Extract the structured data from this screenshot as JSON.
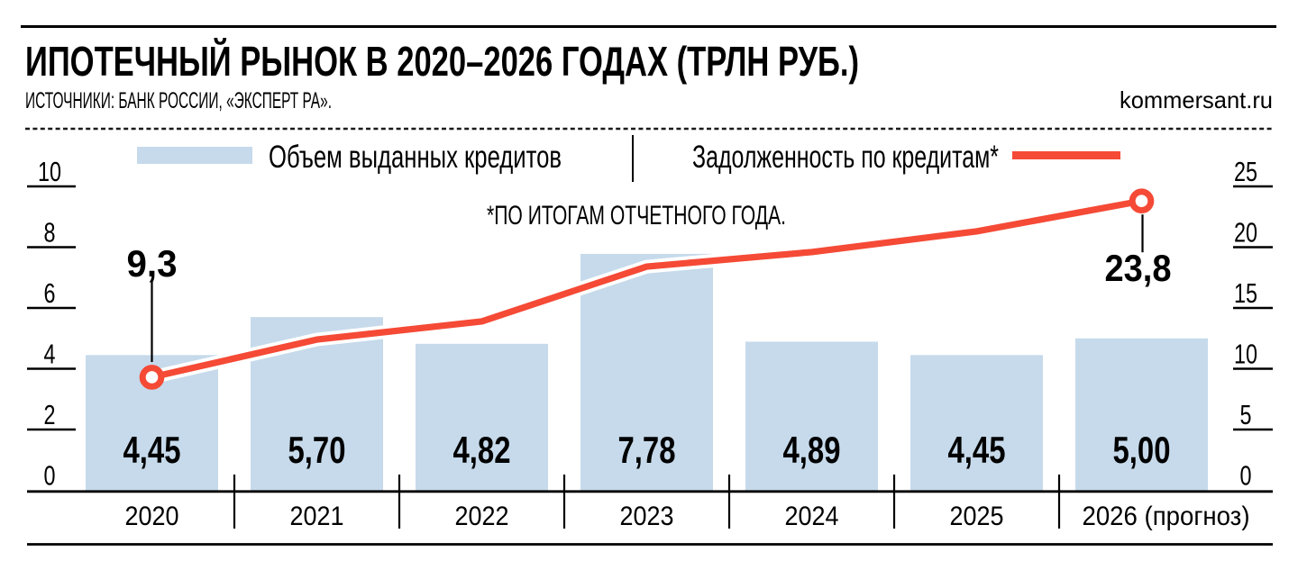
{
  "header": {
    "title": "ИПОТЕЧНЫЙ РЫНОК В 2020–2026 ГОДАХ (ТРЛН РУБ.)",
    "sources": "ИСТОЧНИКИ: БАНК РОССИИ, «ЭКСПЕРТ РА».",
    "watermark": "kommersant.ru"
  },
  "footnote": "*ПО ИТОГАМ ОТЧЕТНОГО ГОДА.",
  "colors": {
    "bar": "#c6daeb",
    "line": "#f54a36",
    "text": "#000000",
    "watermark": "#8e8e8e"
  },
  "chart_data": {
    "type": "bar+line",
    "title": "ИПОТЕЧНЫЙ РЫНОК В 2020–2026 ГОДАХ (ТРЛН РУБ.)",
    "categories": [
      "2020",
      "2021",
      "2022",
      "2023",
      "2024",
      "2025",
      "2026 (прогноз)"
    ],
    "series": [
      {
        "name": "Объем выданных кредитов",
        "type": "bar",
        "axis": "left",
        "color": "#c6daeb",
        "values": [
          4.45,
          5.7,
          4.82,
          7.78,
          4.89,
          4.45,
          5.0
        ],
        "labels": [
          "4,45",
          "5,70",
          "4,82",
          "7,78",
          "4,89",
          "4,45",
          "5,00"
        ]
      },
      {
        "name": "Задолженность по кредитам*",
        "type": "line",
        "axis": "right",
        "color": "#f54a36",
        "values": [
          9.3,
          12.4,
          13.9,
          18.4,
          19.6,
          21.3,
          23.8
        ]
      }
    ],
    "left_axis": {
      "ticks": [
        0,
        2,
        4,
        6,
        8,
        10
      ],
      "range": [
        0,
        10
      ],
      "grid": false
    },
    "right_axis": {
      "ticks": [
        0,
        5,
        10,
        15,
        20,
        25
      ],
      "range": [
        0,
        25
      ],
      "grid": false
    },
    "annotations": [
      {
        "text": "9,3",
        "category": "2020",
        "position": "above"
      },
      {
        "text": "23,8",
        "category": "2026 (прогноз)",
        "position": "below"
      }
    ],
    "legend_position": "top"
  }
}
